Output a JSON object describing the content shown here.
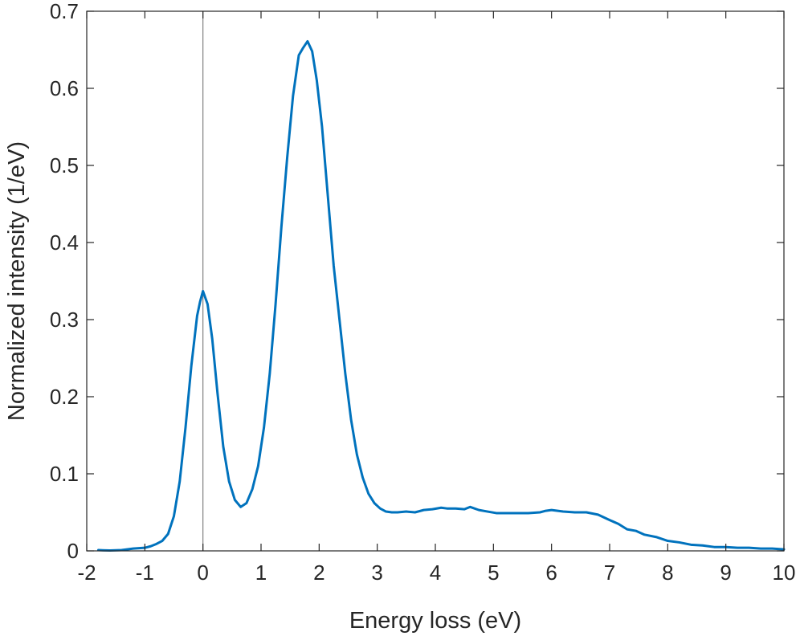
{
  "chart_data": {
    "type": "line",
    "title": "",
    "xlabel": "Energy loss (eV)",
    "ylabel": "Normalized intensity (1/eV)",
    "xlim": [
      -2,
      10
    ],
    "ylim": [
      0,
      0.7
    ],
    "xticks": [
      -2,
      -1,
      0,
      1,
      2,
      3,
      4,
      5,
      6,
      7,
      8,
      9,
      10
    ],
    "xtick_labels": [
      "-2",
      "-1",
      "0",
      "1",
      "2",
      "3",
      "4",
      "5",
      "6",
      "7",
      "8",
      "9",
      "10"
    ],
    "yticks": [
      0,
      0.1,
      0.2,
      0.3,
      0.4,
      0.5,
      0.6,
      0.7
    ],
    "ytick_labels": [
      "0",
      "0.1",
      "0.2",
      "0.3",
      "0.4",
      "0.5",
      "0.6",
      "0.7"
    ],
    "grid": false,
    "box": true,
    "reference_line": {
      "axis": "x",
      "value": 0,
      "color": "#808080"
    },
    "series": [
      {
        "color": "#0072BD",
        "x": [
          -1.8,
          -1.6,
          -1.4,
          -1.2,
          -1.0,
          -0.9,
          -0.8,
          -0.7,
          -0.6,
          -0.5,
          -0.4,
          -0.3,
          -0.2,
          -0.1,
          -0.05,
          0.0,
          0.08,
          0.16,
          0.25,
          0.35,
          0.45,
          0.55,
          0.65,
          0.75,
          0.85,
          0.95,
          1.05,
          1.15,
          1.25,
          1.35,
          1.45,
          1.55,
          1.65,
          1.72,
          1.8,
          1.88,
          1.96,
          2.05,
          2.15,
          2.25,
          2.35,
          2.45,
          2.55,
          2.65,
          2.75,
          2.85,
          2.95,
          3.05,
          3.15,
          3.25,
          3.35,
          3.5,
          3.65,
          3.8,
          3.95,
          4.1,
          4.2,
          4.35,
          4.5,
          4.6,
          4.75,
          4.9,
          5.05,
          5.2,
          5.4,
          5.6,
          5.8,
          5.9,
          6.0,
          6.2,
          6.4,
          6.6,
          6.8,
          7.0,
          7.15,
          7.3,
          7.45,
          7.6,
          7.8,
          8.0,
          8.2,
          8.4,
          8.6,
          8.8,
          9.0,
          9.2,
          9.4,
          9.6,
          9.8,
          10.0
        ],
        "y": [
          0.001,
          0.0005,
          0.001,
          0.003,
          0.004,
          0.006,
          0.009,
          0.013,
          0.022,
          0.045,
          0.09,
          0.16,
          0.24,
          0.305,
          0.323,
          0.337,
          0.32,
          0.275,
          0.205,
          0.135,
          0.09,
          0.066,
          0.057,
          0.062,
          0.08,
          0.11,
          0.16,
          0.23,
          0.32,
          0.42,
          0.51,
          0.59,
          0.643,
          0.652,
          0.661,
          0.648,
          0.61,
          0.55,
          0.46,
          0.37,
          0.3,
          0.23,
          0.17,
          0.125,
          0.095,
          0.074,
          0.062,
          0.055,
          0.051,
          0.05,
          0.05,
          0.051,
          0.05,
          0.053,
          0.054,
          0.056,
          0.055,
          0.055,
          0.054,
          0.057,
          0.053,
          0.051,
          0.049,
          0.049,
          0.049,
          0.049,
          0.05,
          0.052,
          0.053,
          0.051,
          0.05,
          0.05,
          0.047,
          0.04,
          0.035,
          0.028,
          0.026,
          0.021,
          0.018,
          0.013,
          0.011,
          0.008,
          0.007,
          0.005,
          0.005,
          0.004,
          0.004,
          0.003,
          0.003,
          0.002
        ]
      }
    ]
  }
}
